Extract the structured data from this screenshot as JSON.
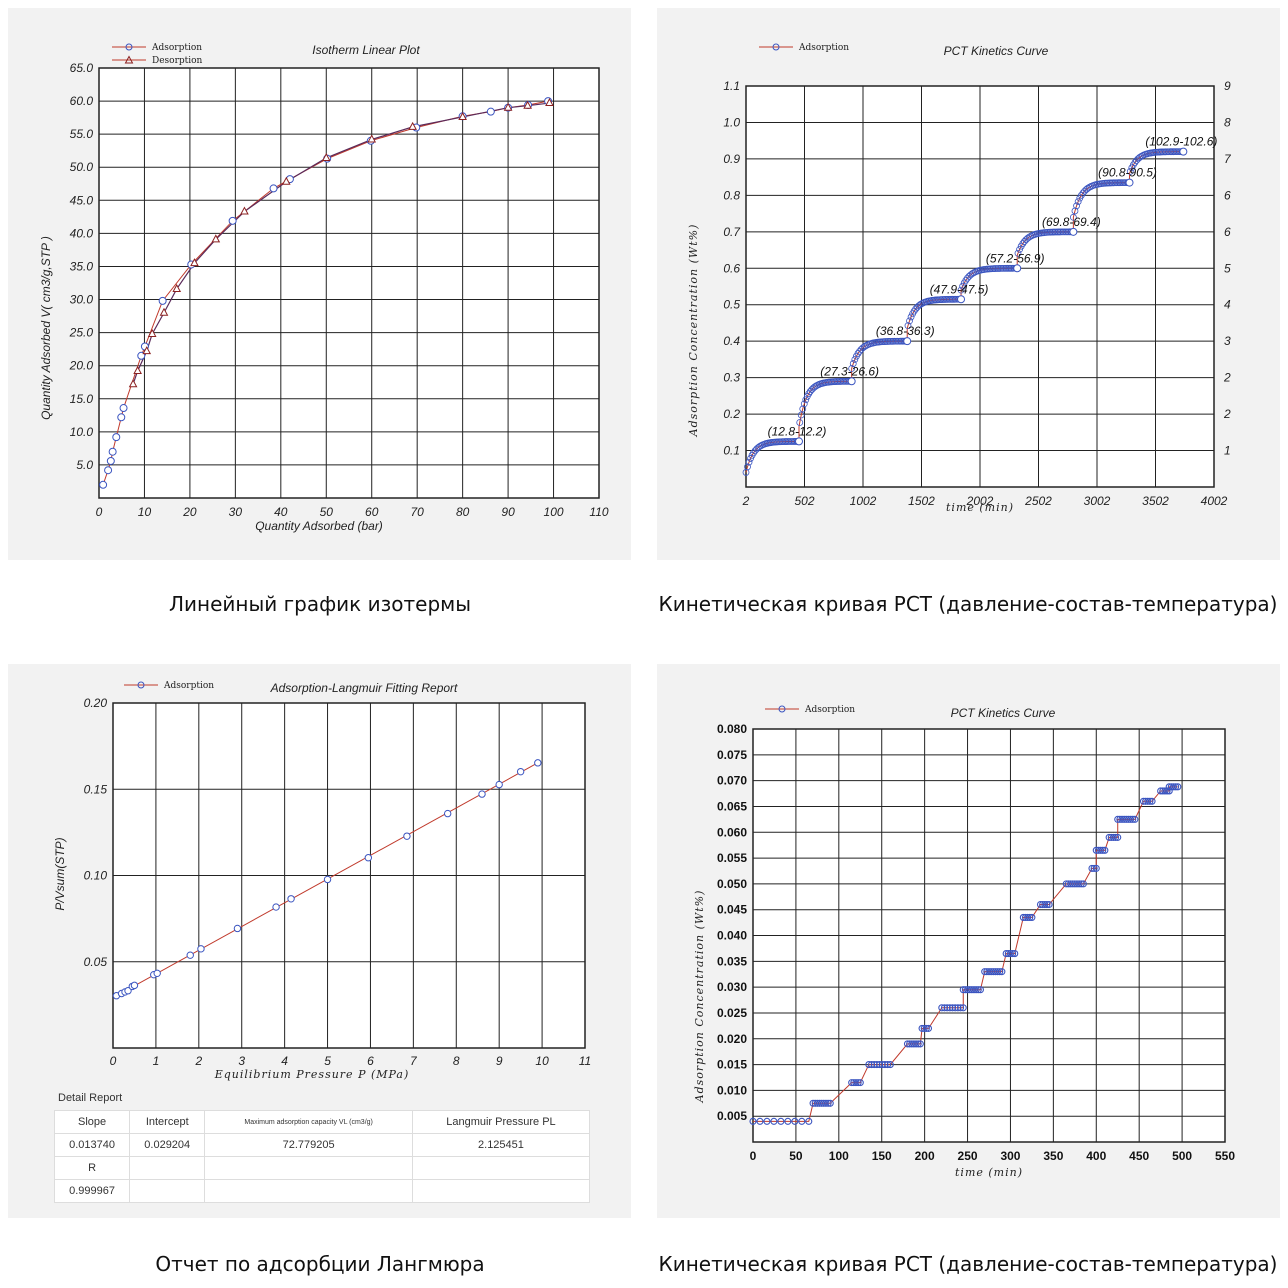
{
  "captions": [
    "Линейный график изотермы",
    "Кинетическая кривая PCT (давление-состав-температура)",
    "Отчет по адсорбции Лангмюра",
    "Кинетическая кривая PCT (давление-состав-температура)"
  ],
  "colors": {
    "series_line": "#c0392b",
    "marker": "#3b55c0",
    "desorption_marker": "#8b2020",
    "panel_bg": "#f2f2f2"
  },
  "chart_data": [
    {
      "type": "line",
      "title": "Isotherm Linear Plot",
      "xlabel": "Quantity Adsorbed  (bar)",
      "ylabel": "Quantity Adsorbed  V( cm3/g,STP )",
      "xlim": [
        0,
        110
      ],
      "ylim": [
        0,
        65
      ],
      "xticks": [
        0,
        10,
        20,
        30,
        40,
        50,
        60,
        70,
        80,
        90,
        100,
        110
      ],
      "yticks": [
        5,
        10,
        15,
        20,
        25,
        30,
        35,
        40,
        45,
        50,
        55,
        60,
        65
      ],
      "grid": true,
      "legend": "top-left",
      "series": [
        {
          "name": "Adsorption",
          "marker": "circle",
          "x": [
            0.9,
            2,
            2.6,
            3,
            3.8,
            4.9,
            5.4,
            9.3,
            10.1,
            14,
            20.3,
            29.4,
            38.4,
            42,
            50.2,
            59.8,
            69.8,
            80,
            86.2,
            90,
            94.4,
            98.8
          ],
          "y": [
            2,
            4.2,
            5.6,
            7,
            9.2,
            12.2,
            13.6,
            21.5,
            22.9,
            29.8,
            35.3,
            41.9,
            46.8,
            48.2,
            51.3,
            54,
            56,
            57.7,
            58.4,
            59,
            59.4,
            60
          ]
        },
        {
          "name": "Desorption",
          "marker": "triangle",
          "x": [
            7.5,
            8.5,
            10.5,
            11.7,
            14.3,
            17.1,
            21,
            25.7,
            32,
            41.2,
            50,
            60,
            69,
            80,
            90,
            94.3,
            99.1
          ],
          "y": [
            17.2,
            19.2,
            22.2,
            24.8,
            28,
            31.6,
            35.5,
            39.1,
            43.3,
            47.8,
            51.4,
            54.2,
            56.1,
            57.6,
            59,
            59.3,
            59.7
          ]
        }
      ]
    },
    {
      "type": "scatter",
      "title": "PCT Kinetics Curve",
      "xlabel": "time (min)",
      "ylabel": "Adsorption Concentration (Wt%)",
      "xlim": [
        2,
        4002
      ],
      "ylim": [
        0,
        1.1
      ],
      "xticks": [
        2,
        502,
        1002,
        1502,
        2002,
        2502,
        3002,
        3502,
        4002
      ],
      "yticks": [
        0.1,
        0.2,
        0.3,
        0.4,
        0.5,
        0.6,
        0.7,
        0.8,
        0.9,
        1.0,
        1.1
      ],
      "y2ticks": [
        "1",
        "2",
        "2",
        "3",
        "4",
        "5",
        "6",
        "6",
        "7",
        "8",
        "9"
      ],
      "grid": true,
      "legend": "top-left",
      "series": [
        {
          "name": "Adsorption"
        }
      ],
      "steps": [
        {
          "t0": 2,
          "t1": 455,
          "y0": 0.04,
          "y1": 0.125,
          "label": "(12.8-12.2)"
        },
        {
          "t0": 455,
          "t1": 905,
          "y0": 0.165,
          "y1": 0.29,
          "label": "(27.3-26.6)"
        },
        {
          "t0": 905,
          "t1": 1380,
          "y0": 0.325,
          "y1": 0.4,
          "label": "(36.8-36.3)"
        },
        {
          "t0": 1380,
          "t1": 1840,
          "y0": 0.435,
          "y1": 0.515,
          "label": "(47.9-47.5)"
        },
        {
          "t0": 1840,
          "t1": 2320,
          "y0": 0.54,
          "y1": 0.6,
          "label": "(57.2-56.9)"
        },
        {
          "t0": 2320,
          "t1": 2800,
          "y0": 0.635,
          "y1": 0.7,
          "label": "(69.8-69.4)"
        },
        {
          "t0": 2800,
          "t1": 3280,
          "y0": 0.74,
          "y1": 0.835,
          "label": "(90.8-90.5)"
        },
        {
          "t0": 3280,
          "t1": 3740,
          "y0": 0.86,
          "y1": 0.92,
          "label": "(102.9-102.6)"
        }
      ]
    },
    {
      "type": "line",
      "title": "Adsorption-Langmuir Fitting Report",
      "xlabel": "Equilibrium Pressure P (MPa)",
      "ylabel": "P/Vsum(STP)",
      "xlim": [
        0,
        11
      ],
      "ylim": [
        0,
        0.2
      ],
      "xticks": [
        0,
        1,
        2,
        3,
        4,
        5,
        6,
        7,
        8,
        9,
        10,
        11
      ],
      "yticks": [
        0.05,
        0.1,
        0.15,
        0.2
      ],
      "grid": true,
      "legend": "top-left",
      "series": [
        {
          "name": "Adsorption",
          "x": [
            0.08,
            0.2,
            0.28,
            0.35,
            0.45,
            0.5,
            0.95,
            1.03,
            1.8,
            2.05,
            2.9,
            3.8,
            4.15,
            5,
            5.95,
            6.85,
            7.8,
            8.6,
            9,
            9.5,
            9.9
          ],
          "y": [
            0.0303,
            0.0316,
            0.0325,
            0.0332,
            0.0357,
            0.0363,
            0.0425,
            0.0433,
            0.0538,
            0.0575,
            0.0693,
            0.0817,
            0.0865,
            0.0977,
            0.1103,
            0.1228,
            0.1359,
            0.1472,
            0.1527,
            0.1602,
            0.1653
          ]
        }
      ]
    },
    {
      "type": "scatter",
      "title": "PCT Kinetics Curve",
      "xlabel": "time (min)",
      "ylabel": "Adsorption Concentration (Wt%)",
      "xlim": [
        0,
        550
      ],
      "ylim": [
        0,
        0.08
      ],
      "xticks": [
        0,
        50,
        100,
        150,
        200,
        250,
        300,
        350,
        400,
        450,
        500,
        550
      ],
      "yticks": [
        0.005,
        0.01,
        0.015,
        0.02,
        0.025,
        0.03,
        0.035,
        0.04,
        0.045,
        0.05,
        0.055,
        0.06,
        0.065,
        0.07,
        0.075,
        0.08
      ],
      "grid": true,
      "legend": "top-left",
      "series": [
        {
          "name": "Adsorption"
        }
      ],
      "plateaus": [
        [
          0,
          65,
          0.004
        ],
        [
          70,
          90,
          0.0075
        ],
        [
          115,
          125,
          0.0115
        ],
        [
          135,
          160,
          0.015
        ],
        [
          180,
          195,
          0.019
        ],
        [
          197,
          205,
          0.022
        ],
        [
          220,
          245,
          0.026
        ],
        [
          245,
          265,
          0.0295
        ],
        [
          270,
          290,
          0.033
        ],
        [
          295,
          305,
          0.0365
        ],
        [
          315,
          325,
          0.0435
        ],
        [
          335,
          345,
          0.046
        ],
        [
          365,
          385,
          0.05
        ],
        [
          395,
          400,
          0.053
        ],
        [
          400,
          410,
          0.0565
        ],
        [
          415,
          425,
          0.059
        ],
        [
          425,
          445,
          0.0625
        ],
        [
          455,
          465,
          0.066
        ],
        [
          475,
          485,
          0.068
        ],
        [
          485,
          495,
          0.0688
        ]
      ]
    }
  ],
  "report": {
    "title": "Detail Report",
    "headers": [
      "Slope",
      "Intercept",
      "Maximum adsorption capacity VL (cm3/g)",
      "Langmuir Pressure PL"
    ],
    "values": [
      "0.013740",
      "0.029204",
      "72.779205",
      "2.125451"
    ],
    "r_label": "R",
    "r_value": "0.999967"
  },
  "legend_labels": {
    "adsorption": "Adsorption",
    "desorption": "Desorption"
  }
}
